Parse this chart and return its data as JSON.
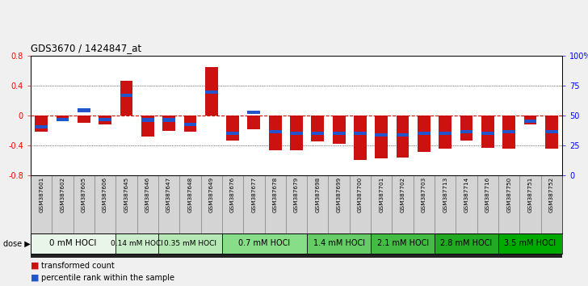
{
  "title": "GDS3670 / 1424847_at",
  "samples": [
    "GSM387601",
    "GSM387602",
    "GSM387605",
    "GSM387606",
    "GSM387645",
    "GSM387646",
    "GSM387647",
    "GSM387648",
    "GSM387649",
    "GSM387676",
    "GSM387677",
    "GSM387678",
    "GSM387679",
    "GSM387698",
    "GSM387699",
    "GSM387700",
    "GSM387701",
    "GSM387702",
    "GSM387703",
    "GSM387713",
    "GSM387714",
    "GSM387716",
    "GSM387750",
    "GSM387751",
    "GSM387752"
  ],
  "red_values": [
    -0.22,
    -0.04,
    -0.1,
    -0.12,
    0.46,
    -0.28,
    -0.2,
    -0.22,
    0.65,
    -0.33,
    -0.18,
    -0.47,
    -0.47,
    -0.35,
    -0.38,
    -0.59,
    -0.57,
    -0.56,
    -0.49,
    -0.44,
    -0.34,
    -0.43,
    -0.44,
    -0.12,
    -0.44
  ],
  "blue_values": [
    -0.155,
    -0.05,
    0.07,
    -0.05,
    0.27,
    -0.06,
    -0.06,
    -0.12,
    0.31,
    -0.24,
    0.04,
    -0.22,
    -0.24,
    -0.24,
    -0.24,
    -0.24,
    -0.26,
    -0.26,
    -0.24,
    -0.24,
    -0.22,
    -0.24,
    -0.22,
    -0.08,
    -0.22
  ],
  "dose_groups": [
    {
      "label": "0 mM HOCl",
      "start": 0,
      "end": 4,
      "color": "#e0f5e0",
      "fontsize": 7.5
    },
    {
      "label": "0.14 mM HOCl",
      "start": 4,
      "end": 6,
      "color": "#c5edca",
      "fontsize": 6.5
    },
    {
      "label": "0.35 mM HOCl",
      "start": 6,
      "end": 9,
      "color": "#aaead0",
      "fontsize": 6.5
    },
    {
      "label": "0.7 mM HOCl",
      "start": 9,
      "end": 13,
      "color": "#80e080",
      "fontsize": 7
    },
    {
      "label": "1.4 mM HOCl",
      "start": 13,
      "end": 16,
      "color": "#55d555",
      "fontsize": 7
    },
    {
      "label": "2.1 mM HOCl",
      "start": 16,
      "end": 19,
      "color": "#40cc40",
      "fontsize": 7
    },
    {
      "label": "2.8 mM HOCl",
      "start": 19,
      "end": 22,
      "color": "#25c025",
      "fontsize": 7
    },
    {
      "label": "3.5 mM HOCl",
      "start": 22,
      "end": 25,
      "color": "#10b510",
      "fontsize": 7
    }
  ],
  "ylim": [
    -0.8,
    0.8
  ],
  "yticks_left": [
    -0.8,
    -0.4,
    0.0,
    0.4,
    0.8
  ],
  "ytick_labels_right": [
    "0",
    "25",
    "50",
    "75",
    "100%"
  ],
  "right_positions": [
    -0.8,
    -0.4,
    0.0,
    0.4,
    0.8
  ],
  "bar_width": 0.6,
  "red_color": "#cc1111",
  "blue_color": "#2255cc",
  "bg_color": "#f0f0f0",
  "plot_bg": "#ffffff",
  "zero_line_color": "#cc0000",
  "grid_color": "#000000",
  "sample_panel_color": "#d4d4d4",
  "dose_sep_color": "#333333"
}
